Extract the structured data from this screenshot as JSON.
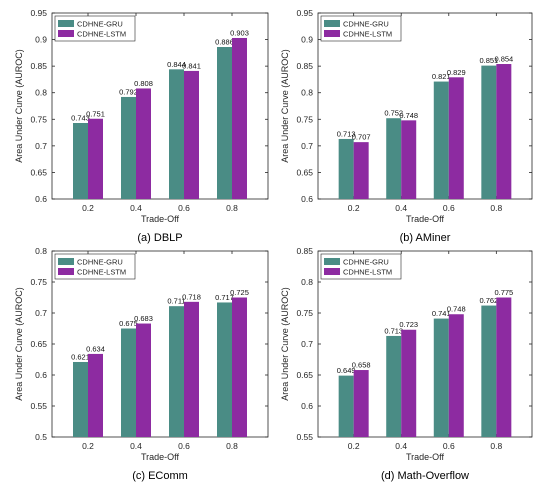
{
  "colors": {
    "gru": "#4a8c85",
    "lstm": "#8d2ba1",
    "axis": "#262626"
  },
  "chart_data": [
    {
      "type": "bar",
      "caption": "(a) DBLP",
      "xlabel": "Trade-Off",
      "ylabel": "Area Under Curve (AUROC)",
      "categories": [
        "0.2",
        "0.4",
        "0.6",
        "0.8"
      ],
      "ylim": [
        0.6,
        0.95
      ],
      "yticks": [
        0.6,
        0.65,
        0.7,
        0.75,
        0.8,
        0.85,
        0.9,
        0.95
      ],
      "ytick_labels": [
        "0.6",
        "0.65",
        "0.7",
        "0.75",
        "0.8",
        "0.85",
        "0.9",
        "0.95"
      ],
      "legend": "top-left",
      "grid": false,
      "series": [
        {
          "name": "CDHNE-GRU",
          "values": [
            0.743,
            0.792,
            0.844,
            0.886
          ],
          "labels": [
            "0.743",
            "0.792",
            "0.844",
            "0.886"
          ]
        },
        {
          "name": "CDHNE-LSTM",
          "values": [
            0.751,
            0.808,
            0.841,
            0.903
          ],
          "labels": [
            "0.751",
            "0.808",
            "0.841",
            "0.903"
          ]
        }
      ]
    },
    {
      "type": "bar",
      "caption": "(b) AMiner",
      "xlabel": "Trade-Off",
      "ylabel": "Area Under Curve (AUROC)",
      "categories": [
        "0.2",
        "0.4",
        "0.6",
        "0.8"
      ],
      "ylim": [
        0.6,
        0.95
      ],
      "yticks": [
        0.6,
        0.65,
        0.7,
        0.75,
        0.8,
        0.85,
        0.9,
        0.95
      ],
      "ytick_labels": [
        "0.6",
        "0.65",
        "0.7",
        "0.75",
        "0.8",
        "0.85",
        "0.9",
        "0.95"
      ],
      "legend": "top-left",
      "grid": false,
      "series": [
        {
          "name": "CDHNE-GRU",
          "values": [
            0.713,
            0.752,
            0.821,
            0.851
          ],
          "labels": [
            "0.713",
            "0.752",
            "0.821",
            "0.851"
          ]
        },
        {
          "name": "CDHNE-LSTM",
          "values": [
            0.707,
            0.748,
            0.829,
            0.854
          ],
          "labels": [
            "0.707",
            "0.748",
            "0.829",
            "0.854"
          ]
        }
      ]
    },
    {
      "type": "bar",
      "caption": "(c) EComm",
      "xlabel": "Trade-Off",
      "ylabel": "Area Under Curve (AUROC)",
      "categories": [
        "0.2",
        "0.4",
        "0.6",
        "0.8"
      ],
      "ylim": [
        0.5,
        0.8
      ],
      "yticks": [
        0.5,
        0.55,
        0.6,
        0.65,
        0.7,
        0.75,
        0.8
      ],
      "ytick_labels": [
        "0.5",
        "0.55",
        "0.6",
        "0.65",
        "0.7",
        "0.75",
        "0.8"
      ],
      "legend": "top-left",
      "grid": false,
      "series": [
        {
          "name": "CDHNE-GRU",
          "values": [
            0.621,
            0.675,
            0.711,
            0.717
          ],
          "labels": [
            "0.621",
            "0.675",
            "0.711",
            "0.717"
          ]
        },
        {
          "name": "CDHNE-LSTM",
          "values": [
            0.634,
            0.683,
            0.718,
            0.725
          ],
          "labels": [
            "0.634",
            "0.683",
            "0.718",
            "0.725"
          ]
        }
      ]
    },
    {
      "type": "bar",
      "caption": "(d) Math-Overflow",
      "xlabel": "Trade-Off",
      "ylabel": "Area Under Curve (AUROC)",
      "categories": [
        "0.2",
        "0.4",
        "0.6",
        "0.8"
      ],
      "ylim": [
        0.55,
        0.85
      ],
      "yticks": [
        0.55,
        0.6,
        0.65,
        0.7,
        0.75,
        0.8,
        0.85
      ],
      "ytick_labels": [
        "0.55",
        "0.6",
        "0.65",
        "0.7",
        "0.75",
        "0.8",
        "0.85"
      ],
      "legend": "top-left",
      "grid": false,
      "series": [
        {
          "name": "CDHNE-GRU",
          "values": [
            0.649,
            0.713,
            0.741,
            0.762
          ],
          "labels": [
            "0.649",
            "0.713",
            "0.741",
            "0.762"
          ]
        },
        {
          "name": "CDHNE-LSTM",
          "values": [
            0.658,
            0.723,
            0.748,
            0.775
          ],
          "labels": [
            "0.658",
            "0.723",
            "0.748",
            "0.775"
          ]
        }
      ]
    }
  ]
}
